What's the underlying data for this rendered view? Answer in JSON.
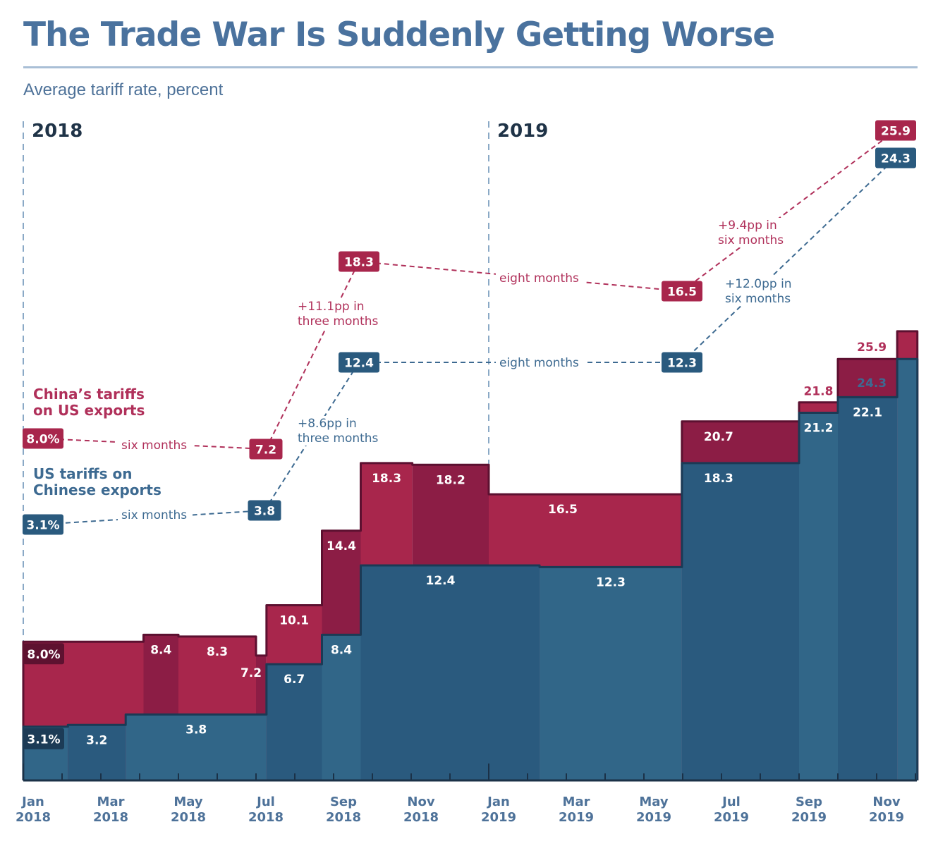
{
  "title": "The Trade War Is Suddenly Getting Worse",
  "subtitle": "Average tariff rate, percent",
  "colors": {
    "title": "#4a729e",
    "china": "#a8264c",
    "china_alt": "#8c1d45",
    "china_outline": "#5c1030",
    "us": "#316688",
    "us_alt": "#2a5a7e",
    "us_outline": "#1b3a55",
    "china_text": "#b0305a",
    "us_text": "#3d6a91",
    "axis_text": "#4e7299"
  },
  "chart_data": {
    "type": "area",
    "subtype": "stepped-overlapping",
    "title": "The Trade War Is Suddenly Getting Worse",
    "ylabel": "Average tariff rate, percent",
    "xlabel": "",
    "x_unit": "months since Jan 2018",
    "xlim": [
      0,
      23.5
    ],
    "ylim": [
      0,
      26
    ],
    "grid": false,
    "legend": "left, inline annotations",
    "year_labels": [
      {
        "label": "2018",
        "x": 0
      },
      {
        "label": "2019",
        "x": 12
      }
    ],
    "x_ticks": [
      {
        "x": 0,
        "label": [
          "Jan",
          "2018"
        ]
      },
      {
        "x": 2,
        "label": [
          "Mar",
          "2018"
        ]
      },
      {
        "x": 4,
        "label": [
          "May",
          "2018"
        ]
      },
      {
        "x": 6,
        "label": [
          "Jul",
          "2018"
        ]
      },
      {
        "x": 8,
        "label": [
          "Sep",
          "2018"
        ]
      },
      {
        "x": 10,
        "label": [
          "Nov",
          "2018"
        ]
      },
      {
        "x": 12,
        "label": [
          "Jan",
          "2019"
        ]
      },
      {
        "x": 14,
        "label": [
          "Mar",
          "2019"
        ]
      },
      {
        "x": 16,
        "label": [
          "May",
          "2019"
        ]
      },
      {
        "x": 18,
        "label": [
          "Jul",
          "2019"
        ]
      },
      {
        "x": 20,
        "label": [
          "Sep",
          "2019"
        ]
      },
      {
        "x": 22,
        "label": [
          "Nov",
          "2019"
        ]
      }
    ],
    "series": [
      {
        "name": "China's tariffs on US exports",
        "legend_label": [
          "China’s tariffs",
          "on US exports"
        ],
        "steps": [
          {
            "start": 0,
            "end": 3.1,
            "value": 8.0,
            "label": "8.0%"
          },
          {
            "start": 3.1,
            "end": 4.0,
            "value": 8.4,
            "label": "8.4"
          },
          {
            "start": 4.0,
            "end": 6.0,
            "value": 8.3,
            "label": "8.3"
          },
          {
            "start": 6.0,
            "end": 6.27,
            "value": 7.2,
            "label": "7.2"
          },
          {
            "start": 6.27,
            "end": 7.7,
            "value": 10.1,
            "label": "10.1"
          },
          {
            "start": 7.7,
            "end": 8.7,
            "value": 14.4,
            "label": "14.4"
          },
          {
            "start": 8.7,
            "end": 10.03,
            "value": 18.3,
            "label": "18.3"
          },
          {
            "start": 10.03,
            "end": 12.0,
            "value": 18.2,
            "label": "18.2"
          },
          {
            "start": 12.0,
            "end": 16.98,
            "value": 16.5,
            "label": "16.5"
          },
          {
            "start": 16.98,
            "end": 20.0,
            "value": 20.7,
            "label": "20.7"
          },
          {
            "start": 20.0,
            "end": 21.0,
            "value": 21.8,
            "label": "21.8"
          },
          {
            "start": 21.0,
            "end": 22.53,
            "value": 24.3,
            "label": ""
          },
          {
            "start": 22.53,
            "end": 23.05,
            "value": 25.9,
            "label": "25.9"
          }
        ]
      },
      {
        "name": "US tariffs on Chinese exports",
        "legend_label": [
          "US tariffs on",
          "Chinese exports"
        ],
        "steps": [
          {
            "start": 0,
            "end": 1.15,
            "value": 3.1,
            "label": "3.1%"
          },
          {
            "start": 1.15,
            "end": 2.64,
            "value": 3.2,
            "label": "3.2"
          },
          {
            "start": 2.64,
            "end": 6.27,
            "value": 3.8,
            "label": "3.8"
          },
          {
            "start": 6.27,
            "end": 7.7,
            "value": 6.7,
            "label": "6.7"
          },
          {
            "start": 7.7,
            "end": 8.7,
            "value": 8.4,
            "label": "8.4"
          },
          {
            "start": 8.7,
            "end": 13.31,
            "value": 12.4,
            "label": "12.4"
          },
          {
            "start": 13.31,
            "end": 16.98,
            "value": 12.3,
            "label": "12.3"
          },
          {
            "start": 16.98,
            "end": 20.0,
            "value": 18.3,
            "label": "18.3"
          },
          {
            "start": 20.0,
            "end": 21.0,
            "value": 21.2,
            "label": "21.2"
          },
          {
            "start": 21.0,
            "end": 22.53,
            "value": 22.1,
            "label": "22.1"
          },
          {
            "start": 22.53,
            "end": 23.05,
            "value": 24.3,
            "label": "24.3"
          }
        ]
      }
    ],
    "annotations": {
      "china_path": [
        {
          "value": "8.0%"
        },
        {
          "value": "7.2"
        },
        {
          "value": "18.3"
        },
        {
          "value": "16.5"
        },
        {
          "value": "25.9"
        }
      ],
      "china_notes": [
        "six months",
        "+11.1pp in|three months",
        "eight months",
        "+9.4pp in|six months"
      ],
      "us_path": [
        {
          "value": "3.1%"
        },
        {
          "value": "3.8"
        },
        {
          "value": "12.4"
        },
        {
          "value": "12.3"
        },
        {
          "value": "24.3"
        }
      ],
      "us_notes": [
        "six months",
        "+8.6pp in|three months",
        "eight months",
        "+12.0pp in|six months"
      ],
      "outside_labels": {
        "china_last_label": "25.9",
        "us_last_label": "24.3",
        "china_sep19_label": "21.8"
      }
    }
  }
}
